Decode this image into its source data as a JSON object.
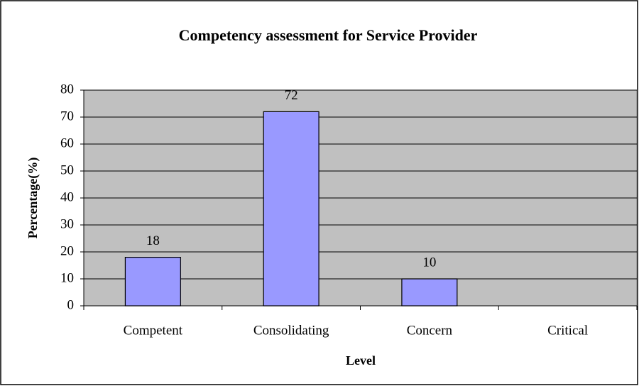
{
  "chart_data": {
    "type": "bar",
    "title": "Competency assessment for Service Provider",
    "categories": [
      "Competent",
      "Consolidating",
      "Concern",
      "Critical"
    ],
    "values": [
      18,
      72,
      10,
      null
    ],
    "color": "#9999ff",
    "plot_background": "#c0c0c0",
    "xlabel": "Level",
    "ylabel": "Percentage(%)",
    "ylim": [
      0,
      80
    ],
    "yticks": [
      0,
      10,
      20,
      30,
      40,
      50,
      60,
      70,
      80
    ],
    "grid": true
  }
}
